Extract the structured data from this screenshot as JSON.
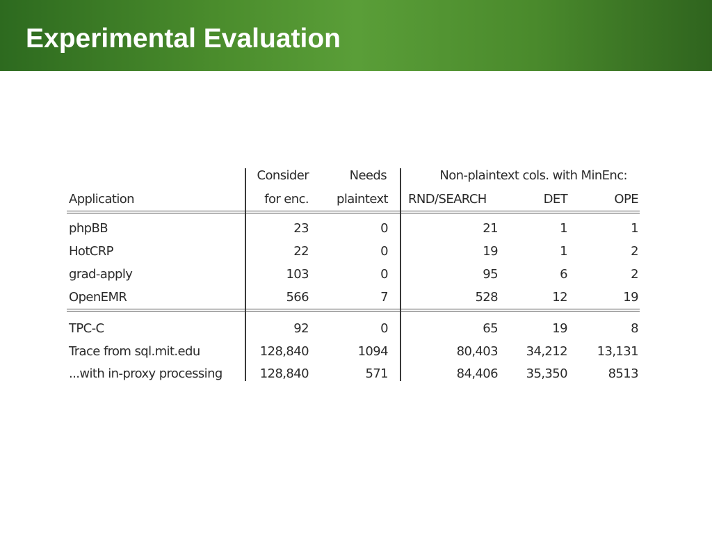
{
  "slide": {
    "title": "Experimental Evaluation"
  },
  "table": {
    "header": {
      "application": "Application",
      "consider_top": "Consider",
      "consider_bottom": "for enc.",
      "needs_top": "Needs",
      "needs_bottom": "plaintext",
      "group_label": "Non-plaintext cols. with MinEnc:",
      "rnd": "RND/SEARCH",
      "det": "DET",
      "ope": "OPE"
    },
    "rows": [
      {
        "app": "phpBB",
        "consider": "23",
        "needs": "0",
        "rnd": "21",
        "det": "1",
        "ope": "1"
      },
      {
        "app": "HotCRP",
        "consider": "22",
        "needs": "0",
        "rnd": "19",
        "det": "1",
        "ope": "2"
      },
      {
        "app": "grad-apply",
        "consider": "103",
        "needs": "0",
        "rnd": "95",
        "det": "6",
        "ope": "2"
      },
      {
        "app": "OpenEMR",
        "consider": "566",
        "needs": "7",
        "rnd": "528",
        "det": "12",
        "ope": "19"
      },
      {
        "app": "TPC-C",
        "consider": "92",
        "needs": "0",
        "rnd": "65",
        "det": "19",
        "ope": "8"
      },
      {
        "app": "Trace from sql.mit.edu",
        "consider": "128,840",
        "needs": "1094",
        "rnd": "80,403",
        "det": "34,212",
        "ope": "13,131"
      },
      {
        "app": "...with in-proxy processing",
        "consider": "128,840",
        "needs": "571",
        "rnd": "84,406",
        "det": "35,350",
        "ope": "8513"
      }
    ]
  }
}
